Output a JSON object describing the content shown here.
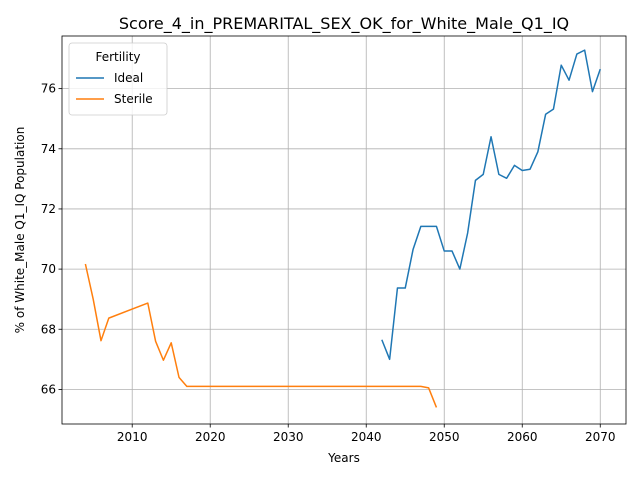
{
  "chart_data": {
    "type": "line",
    "title": "Score_4_in_PREMARITAL_SEX_OK_for_White_Male_Q1_IQ",
    "xlabel": "Years",
    "ylabel": "% of White_Male Q1_IQ Population",
    "xlim": [
      2001,
      2073.3
    ],
    "ylim": [
      64.85,
      77.75
    ],
    "xticks": [
      2010,
      2020,
      2030,
      2040,
      2050,
      2060,
      2070
    ],
    "yticks": [
      66,
      68,
      70,
      72,
      74,
      76
    ],
    "grid": true,
    "legend": {
      "title": "Fertility",
      "position": "top-left"
    },
    "series": [
      {
        "name": "Ideal",
        "color": "#1f77b4",
        "points": [
          [
            2042,
            67.65
          ],
          [
            2043,
            67.0
          ],
          [
            2044,
            69.37
          ],
          [
            2045,
            69.37
          ],
          [
            2046,
            70.65
          ],
          [
            2047,
            71.42
          ],
          [
            2048,
            71.42
          ],
          [
            2049,
            71.42
          ],
          [
            2050,
            70.6
          ],
          [
            2051,
            70.6
          ],
          [
            2052,
            70.0
          ],
          [
            2053,
            71.2
          ],
          [
            2054,
            72.95
          ],
          [
            2055,
            73.15
          ],
          [
            2056,
            74.4
          ],
          [
            2057,
            73.15
          ],
          [
            2058,
            73.02
          ],
          [
            2059,
            73.45
          ],
          [
            2060,
            73.28
          ],
          [
            2061,
            73.32
          ],
          [
            2062,
            73.9
          ],
          [
            2063,
            75.15
          ],
          [
            2064,
            75.32
          ],
          [
            2065,
            76.78
          ],
          [
            2066,
            76.28
          ],
          [
            2067,
            77.15
          ],
          [
            2068,
            77.28
          ],
          [
            2069,
            75.9
          ],
          [
            2070,
            76.65
          ]
        ]
      },
      {
        "name": "Sterile",
        "color": "#ff7f0e",
        "points": [
          [
            2004,
            70.17
          ],
          [
            2005,
            69.0
          ],
          [
            2006,
            67.62
          ],
          [
            2007,
            68.37
          ],
          [
            2012,
            68.87
          ],
          [
            2013,
            67.6
          ],
          [
            2014,
            66.97
          ],
          [
            2015,
            67.55
          ],
          [
            2016,
            66.4
          ],
          [
            2017,
            66.1
          ],
          [
            2047,
            66.1
          ],
          [
            2048,
            66.05
          ],
          [
            2049,
            65.4
          ]
        ]
      }
    ]
  }
}
